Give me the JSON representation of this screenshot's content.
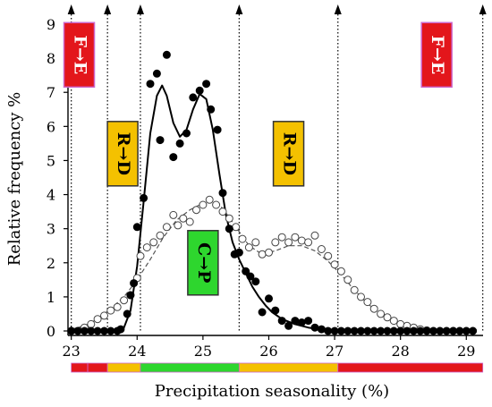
{
  "chart_data": {
    "type": "scatter",
    "title": "",
    "xlabel": "Precipitation seasonality (%)",
    "ylabel": "Relative frequency %",
    "xlim": [
      22.95,
      29.2
    ],
    "ylim": [
      0,
      9
    ],
    "x_ticks": [
      {
        "value": 23,
        "label": "23"
      },
      {
        "value": 24,
        "label": "24"
      },
      {
        "value": 25,
        "label": "25"
      },
      {
        "value": 26,
        "label": "26"
      },
      {
        "value": 27,
        "label": "27"
      },
      {
        "value": 28,
        "label": "28"
      },
      {
        "value": 29,
        "label": "29"
      }
    ],
    "y_ticks": [
      {
        "value": 0,
        "label": "0"
      },
      {
        "value": 1,
        "label": "1"
      },
      {
        "value": 2,
        "label": "2"
      },
      {
        "value": 3,
        "label": "3"
      },
      {
        "value": 4,
        "label": "4"
      },
      {
        "value": 5,
        "label": "5"
      },
      {
        "value": 6,
        "label": "6"
      },
      {
        "value": 7,
        "label": "7"
      },
      {
        "value": 8,
        "label": "8"
      },
      {
        "value": 9,
        "label": "9"
      }
    ],
    "boundaries": [
      23.0,
      23.55,
      24.05,
      25.55,
      27.05,
      29.25
    ],
    "zone_bar": [
      {
        "from": 23.0,
        "to": 23.25,
        "color": "#e3161b"
      },
      {
        "from": 23.25,
        "to": 23.55,
        "color": "#e3161b"
      },
      {
        "from": 23.55,
        "to": 24.05,
        "color": "#f4c100"
      },
      {
        "from": 24.05,
        "to": 25.55,
        "color": "#2ed62e"
      },
      {
        "from": 25.55,
        "to": 27.05,
        "color": "#f4c100"
      },
      {
        "from": 27.05,
        "to": 29.25,
        "color": "#e3161b"
      }
    ],
    "annotations": [
      {
        "text": "F→E",
        "x": 23.12,
        "y": 8.1,
        "fill": "#e3161b",
        "border": "#cc66cc",
        "text_color": "#ffffff"
      },
      {
        "text": "R→D",
        "x": 23.78,
        "y": 5.2,
        "fill": "#f4c100",
        "border": "#333333",
        "text_color": "#000000"
      },
      {
        "text": "C→P",
        "x": 25.0,
        "y": 2.0,
        "fill": "#2ed62e",
        "border": "#333333",
        "text_color": "#000000"
      },
      {
        "text": "R→D",
        "x": 26.3,
        "y": 5.2,
        "fill": "#f4c100",
        "border": "#333333",
        "text_color": "#000000"
      },
      {
        "text": "F→E",
        "x": 28.55,
        "y": 8.1,
        "fill": "#e3161b",
        "border": "#cc66cc",
        "text_color": "#ffffff"
      }
    ],
    "series": [
      {
        "marker": "filled-circle",
        "points": [
          [
            23.0,
            0
          ],
          [
            23.1,
            0
          ],
          [
            23.2,
            0
          ],
          [
            23.3,
            0
          ],
          [
            23.4,
            0
          ],
          [
            23.5,
            0
          ],
          [
            23.6,
            0
          ],
          [
            23.7,
            0
          ],
          [
            23.75,
            0.05
          ],
          [
            23.85,
            0.5
          ],
          [
            23.9,
            1.05
          ],
          [
            23.95,
            1.4
          ],
          [
            24.0,
            3.05
          ],
          [
            24.1,
            3.9
          ],
          [
            24.2,
            7.25
          ],
          [
            24.3,
            7.55
          ],
          [
            24.35,
            5.6
          ],
          [
            24.45,
            8.1
          ],
          [
            24.55,
            5.1
          ],
          [
            24.65,
            5.5
          ],
          [
            24.75,
            5.8
          ],
          [
            24.85,
            6.85
          ],
          [
            24.95,
            7.05
          ],
          [
            25.05,
            7.25
          ],
          [
            25.12,
            6.5
          ],
          [
            25.22,
            5.9
          ],
          [
            25.3,
            4.05
          ],
          [
            25.4,
            3.0
          ],
          [
            25.48,
            2.25
          ],
          [
            25.55,
            2.3
          ],
          [
            25.65,
            1.75
          ],
          [
            25.72,
            1.6
          ],
          [
            25.8,
            1.45
          ],
          [
            25.9,
            0.55
          ],
          [
            26.0,
            0.95
          ],
          [
            26.1,
            0.6
          ],
          [
            26.2,
            0.3
          ],
          [
            26.3,
            0.15
          ],
          [
            26.4,
            0.3
          ],
          [
            26.5,
            0.25
          ],
          [
            26.6,
            0.3
          ],
          [
            26.7,
            0.1
          ],
          [
            26.8,
            0.05
          ],
          [
            26.9,
            0
          ],
          [
            27.0,
            0
          ],
          [
            27.1,
            0
          ],
          [
            27.2,
            0
          ],
          [
            27.3,
            0
          ],
          [
            27.4,
            0
          ],
          [
            27.5,
            0
          ],
          [
            27.6,
            0
          ],
          [
            27.7,
            0
          ],
          [
            27.8,
            0
          ],
          [
            27.9,
            0
          ],
          [
            28.0,
            0
          ],
          [
            28.1,
            0
          ],
          [
            28.2,
            0
          ],
          [
            28.3,
            0
          ],
          [
            28.4,
            0
          ],
          [
            28.5,
            0
          ],
          [
            28.6,
            0
          ],
          [
            28.7,
            0
          ],
          [
            28.8,
            0
          ],
          [
            28.9,
            0
          ],
          [
            29.0,
            0
          ],
          [
            29.1,
            0
          ]
        ],
        "fit": [
          [
            23.7,
            0
          ],
          [
            23.8,
            0.1
          ],
          [
            23.9,
            0.6
          ],
          [
            24.0,
            1.9
          ],
          [
            24.1,
            3.8
          ],
          [
            24.2,
            5.8
          ],
          [
            24.3,
            6.9
          ],
          [
            24.38,
            7.2
          ],
          [
            24.45,
            6.9
          ],
          [
            24.55,
            6.1
          ],
          [
            24.65,
            5.7
          ],
          [
            24.75,
            5.9
          ],
          [
            24.85,
            6.5
          ],
          [
            24.95,
            6.95
          ],
          [
            25.05,
            6.8
          ],
          [
            25.15,
            5.9
          ],
          [
            25.25,
            4.6
          ],
          [
            25.35,
            3.4
          ],
          [
            25.45,
            2.6
          ],
          [
            25.55,
            2.1
          ],
          [
            25.65,
            1.7
          ],
          [
            25.75,
            1.3
          ],
          [
            25.85,
            1.0
          ],
          [
            25.95,
            0.75
          ],
          [
            26.05,
            0.55
          ],
          [
            26.2,
            0.35
          ],
          [
            26.4,
            0.2
          ],
          [
            26.6,
            0.1
          ],
          [
            26.8,
            0.04
          ],
          [
            27.0,
            0
          ],
          [
            29.1,
            0
          ]
        ]
      },
      {
        "marker": "open-circle",
        "points": [
          [
            23.0,
            0
          ],
          [
            23.1,
            0
          ],
          [
            23.2,
            0.1
          ],
          [
            23.3,
            0.2
          ],
          [
            23.4,
            0.35
          ],
          [
            23.5,
            0.45
          ],
          [
            23.6,
            0.6
          ],
          [
            23.7,
            0.7
          ],
          [
            23.8,
            0.9
          ],
          [
            23.9,
            1.05
          ],
          [
            24.0,
            1.55
          ],
          [
            24.05,
            2.2
          ],
          [
            24.15,
            2.45
          ],
          [
            24.25,
            2.6
          ],
          [
            24.35,
            2.8
          ],
          [
            24.45,
            3.05
          ],
          [
            24.55,
            3.4
          ],
          [
            24.62,
            3.1
          ],
          [
            24.7,
            3.3
          ],
          [
            24.8,
            3.2
          ],
          [
            24.9,
            3.55
          ],
          [
            25.0,
            3.7
          ],
          [
            25.1,
            3.85
          ],
          [
            25.2,
            3.7
          ],
          [
            25.3,
            3.5
          ],
          [
            25.4,
            3.3
          ],
          [
            25.5,
            3.05
          ],
          [
            25.6,
            2.7
          ],
          [
            25.7,
            2.45
          ],
          [
            25.8,
            2.6
          ],
          [
            25.9,
            2.25
          ],
          [
            26.0,
            2.3
          ],
          [
            26.1,
            2.6
          ],
          [
            26.2,
            2.75
          ],
          [
            26.3,
            2.6
          ],
          [
            26.4,
            2.75
          ],
          [
            26.5,
            2.65
          ],
          [
            26.6,
            2.6
          ],
          [
            26.7,
            2.8
          ],
          [
            26.8,
            2.4
          ],
          [
            26.9,
            2.2
          ],
          [
            27.0,
            1.95
          ],
          [
            27.1,
            1.75
          ],
          [
            27.2,
            1.5
          ],
          [
            27.3,
            1.2
          ],
          [
            27.4,
            1.0
          ],
          [
            27.5,
            0.85
          ],
          [
            27.6,
            0.65
          ],
          [
            27.7,
            0.5
          ],
          [
            27.8,
            0.4
          ],
          [
            27.9,
            0.3
          ],
          [
            28.0,
            0.2
          ],
          [
            28.1,
            0.15
          ],
          [
            28.2,
            0.1
          ],
          [
            28.3,
            0.05
          ],
          [
            28.4,
            0.02
          ],
          [
            28.5,
            0
          ],
          [
            28.6,
            0
          ],
          [
            28.7,
            0
          ],
          [
            28.8,
            0
          ],
          [
            28.9,
            0
          ],
          [
            29.0,
            0
          ],
          [
            29.1,
            0
          ]
        ],
        "fit": [
          [
            23.0,
            0.05
          ],
          [
            23.2,
            0.15
          ],
          [
            23.4,
            0.35
          ],
          [
            23.6,
            0.65
          ],
          [
            23.8,
            1.0
          ],
          [
            24.0,
            1.5
          ],
          [
            24.2,
            2.1
          ],
          [
            24.4,
            2.75
          ],
          [
            24.6,
            3.25
          ],
          [
            24.8,
            3.55
          ],
          [
            25.0,
            3.75
          ],
          [
            25.15,
            3.8
          ],
          [
            25.3,
            3.6
          ],
          [
            25.5,
            3.05
          ],
          [
            25.7,
            2.5
          ],
          [
            25.9,
            2.25
          ],
          [
            26.1,
            2.35
          ],
          [
            26.3,
            2.5
          ],
          [
            26.5,
            2.5
          ],
          [
            26.7,
            2.35
          ],
          [
            26.9,
            2.05
          ],
          [
            27.1,
            1.65
          ],
          [
            27.3,
            1.2
          ],
          [
            27.5,
            0.8
          ],
          [
            27.7,
            0.5
          ],
          [
            27.9,
            0.3
          ],
          [
            28.1,
            0.15
          ],
          [
            28.3,
            0.07
          ],
          [
            28.5,
            0.02
          ],
          [
            28.7,
            0
          ],
          [
            29.1,
            0
          ]
        ]
      }
    ]
  }
}
